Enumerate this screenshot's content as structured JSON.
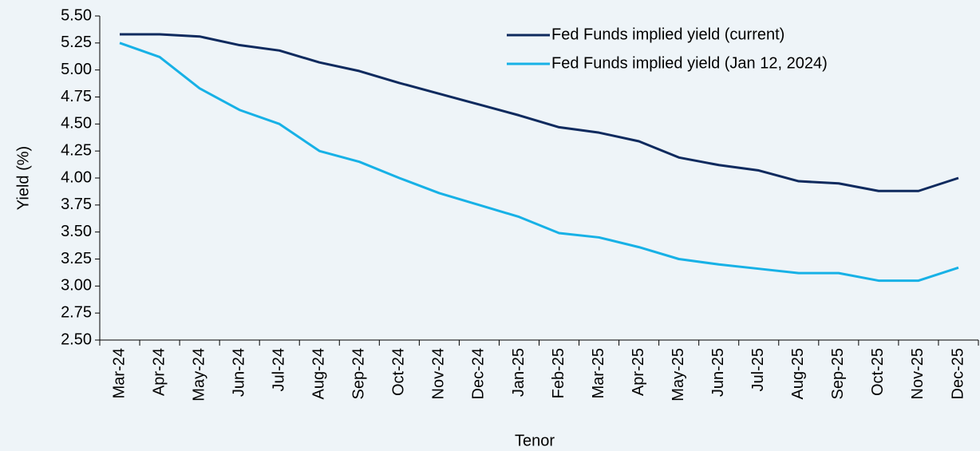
{
  "chart_data": {
    "type": "line",
    "categories": [
      "Mar-24",
      "Apr-24",
      "May-24",
      "Jun-24",
      "Jul-24",
      "Aug-24",
      "Sep-24",
      "Oct-24",
      "Nov-24",
      "Dec-24",
      "Jan-25",
      "Feb-25",
      "Mar-25",
      "Apr-25",
      "May-25",
      "Jun-25",
      "Jul-25",
      "Aug-25",
      "Sep-25",
      "Oct-25",
      "Nov-25",
      "Dec-25"
    ],
    "series": [
      {
        "name": "Fed Funds implied yield (current)",
        "color": "#0e2a5e",
        "values": [
          5.33,
          5.33,
          5.31,
          5.23,
          5.18,
          5.07,
          4.99,
          4.88,
          4.78,
          4.68,
          4.58,
          4.47,
          4.42,
          4.34,
          4.19,
          4.12,
          4.07,
          3.97,
          3.95,
          3.88,
          3.88,
          4.0
        ]
      },
      {
        "name": "Fed Funds implied yield (Jan 12, 2024)",
        "color": "#17b1e6",
        "values": [
          5.25,
          5.12,
          4.83,
          4.63,
          4.5,
          4.25,
          4.15,
          4.0,
          3.86,
          3.75,
          3.64,
          3.49,
          3.45,
          3.36,
          3.25,
          3.2,
          3.16,
          3.12,
          3.12,
          3.05,
          3.05,
          3.17
        ]
      }
    ],
    "x_label": "Tenor",
    "y_label": "Yield (%)",
    "ylim": [
      2.5,
      5.5
    ],
    "yticks": [
      {
        "value": 2.5,
        "label": "2.50"
      },
      {
        "value": 2.75,
        "label": "2.75"
      },
      {
        "value": 3.0,
        "label": "3.00"
      },
      {
        "value": 3.25,
        "label": "3.25"
      },
      {
        "value": 3.5,
        "label": "3.50"
      },
      {
        "value": 3.75,
        "label": "3.75"
      },
      {
        "value": 4.0,
        "label": "4.00"
      },
      {
        "value": 4.25,
        "label": "4.25"
      },
      {
        "value": 4.5,
        "label": "4.50"
      },
      {
        "value": 4.75,
        "label": "4.75"
      },
      {
        "value": 5.0,
        "label": "5.00"
      },
      {
        "value": 5.25,
        "label": "5.25"
      },
      {
        "value": 5.5,
        "label": "5.50"
      }
    ],
    "grid": false,
    "legend_position": "upper right"
  }
}
